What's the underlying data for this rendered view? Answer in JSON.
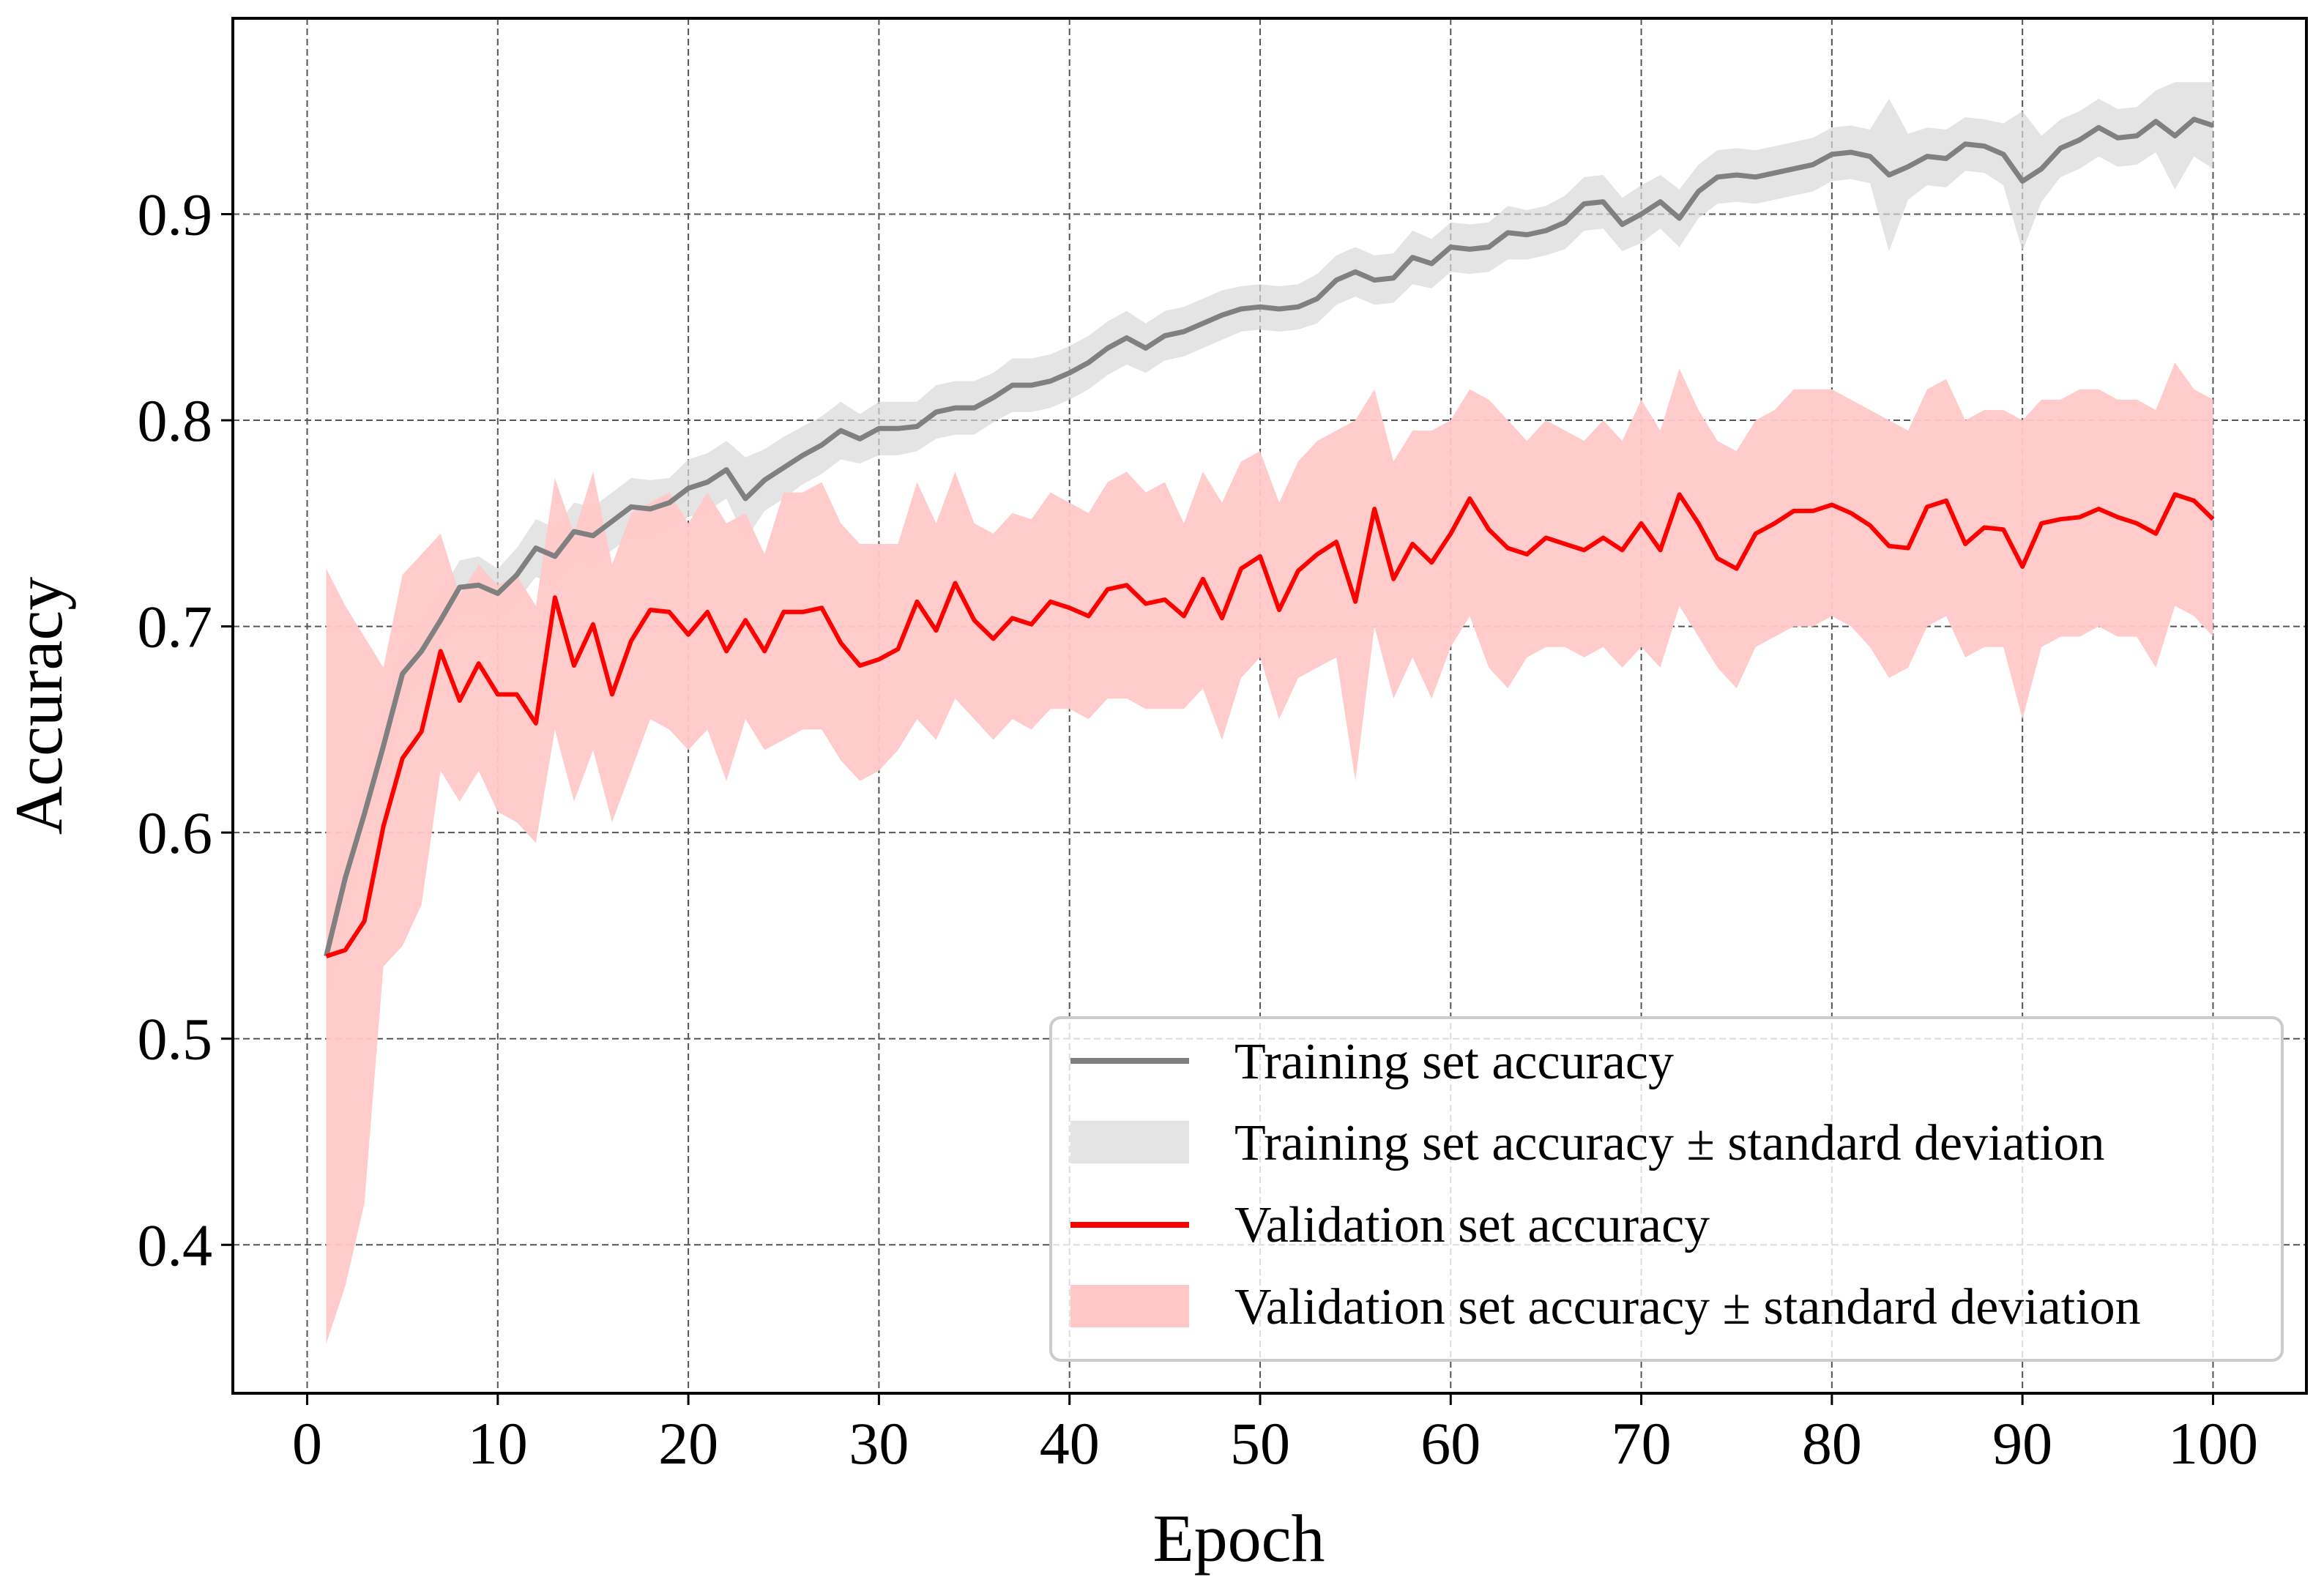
{
  "chart_data": {
    "type": "line",
    "title": "",
    "xlabel": "Epoch",
    "ylabel": "Accuracy",
    "xlim": [
      -3.9,
      104.9
    ],
    "ylim": [
      0.328,
      0.995
    ],
    "xticks": [
      0,
      10,
      20,
      30,
      40,
      50,
      60,
      70,
      80,
      90,
      100
    ],
    "xtick_labels": [
      "0",
      "10",
      "20",
      "30",
      "40",
      "50",
      "60",
      "70",
      "80",
      "90",
      "100"
    ],
    "yticks": [
      0.4,
      0.5,
      0.6,
      0.7,
      0.8,
      0.9
    ],
    "ytick_labels": [
      "0.4",
      "0.5",
      "0.6",
      "0.7",
      "0.8",
      "0.9"
    ],
    "grid": true,
    "legend_position": "lower-right",
    "x_range": [
      1,
      100
    ],
    "series": [
      {
        "name": "Training set accuracy",
        "kind": "line",
        "color": "#808080",
        "values": [
          0.54,
          0.578,
          0.609,
          0.642,
          0.677,
          0.688,
          0.703,
          0.719,
          0.72,
          0.716,
          0.725,
          0.738,
          0.734,
          0.746,
          0.744,
          0.751,
          0.758,
          0.757,
          0.76,
          0.767,
          0.77,
          0.776,
          0.762,
          0.771,
          0.777,
          0.783,
          0.788,
          0.795,
          0.791,
          0.796,
          0.796,
          0.797,
          0.804,
          0.806,
          0.806,
          0.811,
          0.817,
          0.817,
          0.819,
          0.823,
          0.828,
          0.835,
          0.84,
          0.835,
          0.841,
          0.843,
          0.847,
          0.851,
          0.854,
          0.855,
          0.854,
          0.855,
          0.859,
          0.868,
          0.872,
          0.868,
          0.869,
          0.879,
          0.876,
          0.884,
          0.883,
          0.884,
          0.891,
          0.89,
          0.892,
          0.896,
          0.905,
          0.906,
          0.895,
          0.9,
          0.906,
          0.898,
          0.911,
          0.918,
          0.919,
          0.918,
          0.92,
          0.922,
          0.924,
          0.929,
          0.93,
          0.928,
          0.919,
          0.923,
          0.928,
          0.927,
          0.934,
          0.933,
          0.929,
          0.916,
          0.922,
          0.932,
          0.936,
          0.942,
          0.937,
          0.938,
          0.945,
          0.938,
          0.946,
          0.943
        ]
      },
      {
        "name": "Training set accuracy ± standard deviation",
        "kind": "band",
        "color": "#d9d9d9",
        "lower": [
          0.517,
          0.56,
          0.595,
          0.628,
          0.662,
          0.674,
          0.69,
          0.706,
          0.706,
          0.704,
          0.712,
          0.724,
          0.72,
          0.732,
          0.73,
          0.737,
          0.744,
          0.743,
          0.748,
          0.753,
          0.756,
          0.762,
          0.742,
          0.756,
          0.762,
          0.769,
          0.774,
          0.781,
          0.779,
          0.783,
          0.783,
          0.785,
          0.791,
          0.793,
          0.793,
          0.799,
          0.804,
          0.804,
          0.806,
          0.81,
          0.815,
          0.822,
          0.827,
          0.823,
          0.829,
          0.831,
          0.835,
          0.839,
          0.843,
          0.844,
          0.843,
          0.844,
          0.847,
          0.856,
          0.86,
          0.856,
          0.857,
          0.866,
          0.864,
          0.872,
          0.871,
          0.872,
          0.878,
          0.878,
          0.88,
          0.883,
          0.892,
          0.893,
          0.882,
          0.886,
          0.893,
          0.884,
          0.898,
          0.905,
          0.906,
          0.905,
          0.907,
          0.909,
          0.911,
          0.916,
          0.917,
          0.915,
          0.882,
          0.907,
          0.914,
          0.913,
          0.921,
          0.92,
          0.914,
          0.882,
          0.906,
          0.918,
          0.922,
          0.928,
          0.923,
          0.924,
          0.93,
          0.912,
          0.928,
          0.922
        ],
        "upper": [
          0.563,
          0.596,
          0.623,
          0.656,
          0.692,
          0.702,
          0.716,
          0.732,
          0.734,
          0.728,
          0.738,
          0.752,
          0.748,
          0.76,
          0.758,
          0.765,
          0.772,
          0.771,
          0.772,
          0.781,
          0.784,
          0.79,
          0.782,
          0.786,
          0.792,
          0.797,
          0.802,
          0.809,
          0.803,
          0.809,
          0.809,
          0.809,
          0.817,
          0.819,
          0.819,
          0.823,
          0.83,
          0.83,
          0.832,
          0.836,
          0.841,
          0.848,
          0.853,
          0.847,
          0.853,
          0.855,
          0.859,
          0.863,
          0.865,
          0.866,
          0.865,
          0.866,
          0.871,
          0.88,
          0.884,
          0.88,
          0.881,
          0.892,
          0.888,
          0.896,
          0.895,
          0.896,
          0.904,
          0.902,
          0.904,
          0.909,
          0.918,
          0.919,
          0.908,
          0.914,
          0.919,
          0.912,
          0.924,
          0.931,
          0.932,
          0.931,
          0.933,
          0.935,
          0.937,
          0.942,
          0.943,
          0.941,
          0.956,
          0.939,
          0.942,
          0.941,
          0.947,
          0.946,
          0.944,
          0.95,
          0.938,
          0.946,
          0.95,
          0.956,
          0.951,
          0.952,
          0.96,
          0.964,
          0.964,
          0.964
        ]
      },
      {
        "name": "Validation set accuracy",
        "kind": "line",
        "color": "#ff0000",
        "values": [
          0.54,
          0.543,
          0.557,
          0.603,
          0.636,
          0.649,
          0.688,
          0.664,
          0.682,
          0.667,
          0.667,
          0.653,
          0.714,
          0.681,
          0.701,
          0.667,
          0.693,
          0.708,
          0.707,
          0.696,
          0.707,
          0.688,
          0.703,
          0.688,
          0.707,
          0.707,
          0.709,
          0.692,
          0.681,
          0.684,
          0.689,
          0.712,
          0.698,
          0.721,
          0.703,
          0.694,
          0.704,
          0.701,
          0.712,
          0.709,
          0.705,
          0.718,
          0.72,
          0.711,
          0.713,
          0.705,
          0.723,
          0.704,
          0.728,
          0.734,
          0.708,
          0.727,
          0.735,
          0.741,
          0.712,
          0.757,
          0.723,
          0.74,
          0.731,
          0.745,
          0.762,
          0.747,
          0.738,
          0.735,
          0.743,
          0.74,
          0.737,
          0.743,
          0.737,
          0.75,
          0.737,
          0.764,
          0.75,
          0.733,
          0.728,
          0.745,
          0.75,
          0.756,
          0.756,
          0.759,
          0.755,
          0.749,
          0.739,
          0.738,
          0.758,
          0.761,
          0.74,
          0.748,
          0.747,
          0.729,
          0.75,
          0.752,
          0.753,
          0.757,
          0.753,
          0.75,
          0.745,
          0.764,
          0.761,
          0.752
        ]
      },
      {
        "name": "Validation set accuracy ± standard deviation",
        "kind": "band",
        "color": "#ffc8c8",
        "lower": [
          0.352,
          0.38,
          0.42,
          0.535,
          0.545,
          0.565,
          0.63,
          0.615,
          0.63,
          0.61,
          0.605,
          0.595,
          0.65,
          0.615,
          0.64,
          0.605,
          0.63,
          0.655,
          0.65,
          0.64,
          0.65,
          0.625,
          0.655,
          0.64,
          0.645,
          0.65,
          0.65,
          0.635,
          0.625,
          0.63,
          0.64,
          0.655,
          0.645,
          0.665,
          0.655,
          0.645,
          0.655,
          0.65,
          0.66,
          0.66,
          0.655,
          0.665,
          0.665,
          0.66,
          0.66,
          0.66,
          0.67,
          0.645,
          0.675,
          0.685,
          0.655,
          0.675,
          0.68,
          0.685,
          0.625,
          0.7,
          0.665,
          0.685,
          0.665,
          0.69,
          0.705,
          0.68,
          0.67,
          0.685,
          0.69,
          0.69,
          0.685,
          0.69,
          0.68,
          0.69,
          0.68,
          0.71,
          0.695,
          0.68,
          0.67,
          0.69,
          0.695,
          0.7,
          0.7,
          0.705,
          0.7,
          0.69,
          0.675,
          0.68,
          0.7,
          0.705,
          0.685,
          0.69,
          0.69,
          0.655,
          0.69,
          0.695,
          0.695,
          0.7,
          0.695,
          0.695,
          0.68,
          0.71,
          0.705,
          0.695
        ],
        "upper": [
          0.728,
          0.71,
          0.695,
          0.68,
          0.725,
          0.735,
          0.745,
          0.715,
          0.73,
          0.72,
          0.725,
          0.71,
          0.772,
          0.745,
          0.775,
          0.73,
          0.755,
          0.76,
          0.765,
          0.75,
          0.765,
          0.75,
          0.755,
          0.735,
          0.765,
          0.765,
          0.77,
          0.75,
          0.74,
          0.74,
          0.74,
          0.77,
          0.75,
          0.775,
          0.75,
          0.745,
          0.755,
          0.752,
          0.765,
          0.76,
          0.755,
          0.77,
          0.775,
          0.765,
          0.77,
          0.75,
          0.775,
          0.76,
          0.78,
          0.785,
          0.76,
          0.78,
          0.79,
          0.795,
          0.8,
          0.815,
          0.78,
          0.795,
          0.795,
          0.8,
          0.815,
          0.81,
          0.8,
          0.79,
          0.8,
          0.795,
          0.79,
          0.8,
          0.79,
          0.81,
          0.795,
          0.825,
          0.805,
          0.79,
          0.785,
          0.8,
          0.805,
          0.815,
          0.815,
          0.815,
          0.81,
          0.805,
          0.8,
          0.795,
          0.815,
          0.82,
          0.8,
          0.805,
          0.805,
          0.8,
          0.81,
          0.81,
          0.815,
          0.815,
          0.81,
          0.81,
          0.805,
          0.828,
          0.815,
          0.81
        ]
      }
    ]
  }
}
